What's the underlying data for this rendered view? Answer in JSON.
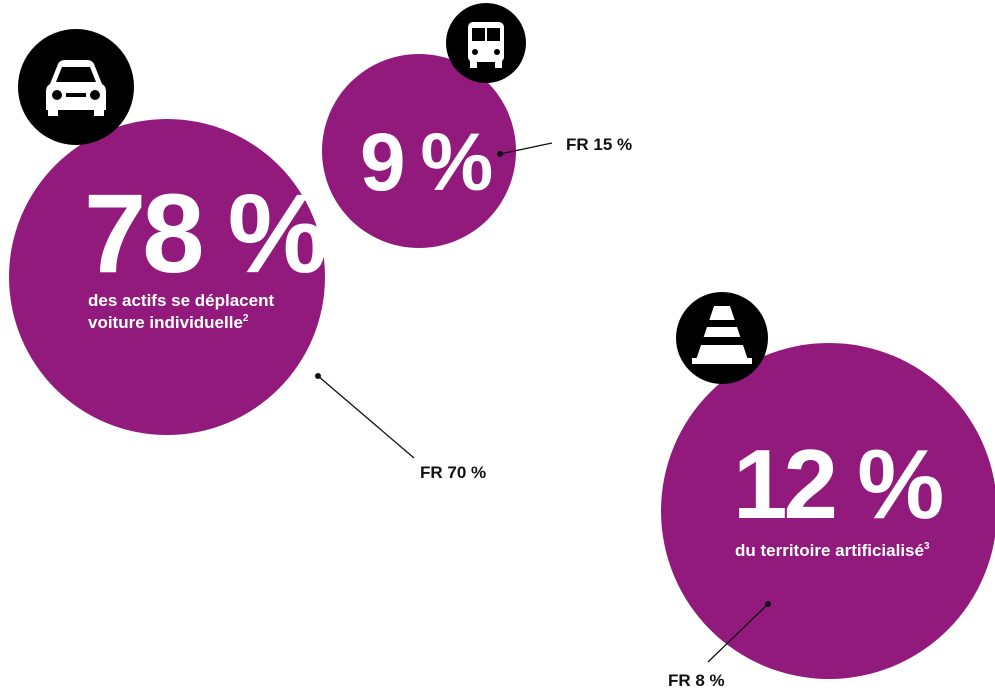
{
  "bubbles": [
    {
      "value": "78 %",
      "description": [
        "des actifs se déplacent",
        "voiture individuelle"
      ],
      "note": "2",
      "comparison": "FR 70 %"
    },
    {
      "value": "9 %",
      "comparison": "FR 15 %"
    },
    {
      "value": "12 %",
      "description": [
        "du territoire artificialisé"
      ],
      "note": "3",
      "comparison": "FR 8 %"
    }
  ]
}
